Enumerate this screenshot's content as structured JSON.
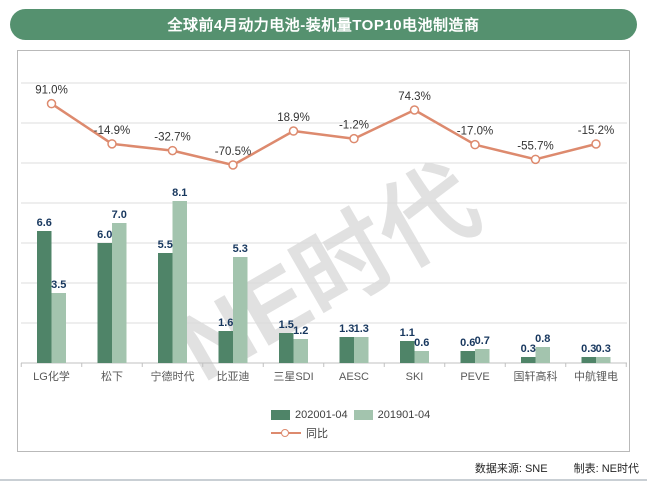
{
  "title": "全球前4月动力电池-装机量TOP10电池制造商",
  "watermark": "NE时代",
  "legend": {
    "series1_label": "202001-04",
    "series2_label": "201901-04",
    "line_label": "同比"
  },
  "footer": {
    "source_label": "数据来源: SNE",
    "maker_label": "制表: NE时代"
  },
  "colors": {
    "title_bg": "#55916f",
    "bar_2020": "#4f8468",
    "bar_2019": "#a3c4ae",
    "trend_line": "#dd8a6e",
    "bar_value_label": "#17375e",
    "trend_value_label": "#333333",
    "category_label": "#595959",
    "gridline": "#dcdcdc",
    "axis_line": "#c0c0c0"
  },
  "chart_data": {
    "type": "bar",
    "subtype": "grouped bars with secondary-axis line (combo)",
    "categories": [
      "LG化学",
      "松下",
      "宁德时代",
      "比亚迪",
      "三星SDI",
      "AESC",
      "SKI",
      "PEVE",
      "国轩高科",
      "中航锂电"
    ],
    "series": [
      {
        "name": "202001-04",
        "values": [
          6.6,
          6.0,
          5.5,
          1.6,
          1.5,
          1.3,
          1.1,
          0.6,
          0.3,
          0.3
        ]
      },
      {
        "name": "201901-04",
        "values": [
          3.5,
          7.0,
          8.1,
          5.3,
          1.2,
          1.3,
          0.6,
          0.7,
          0.8,
          0.3
        ]
      }
    ],
    "line_series": {
      "name": "同比",
      "unit": "%",
      "values": [
        91.0,
        -14.9,
        -32.7,
        -70.5,
        18.9,
        -1.2,
        74.3,
        -17.0,
        -55.7,
        -15.2
      ]
    },
    "title": "全球前4月动力电池-装机量TOP10电池制造商",
    "xlabel": "",
    "ylabel": "",
    "bar_axis_range": [
      0,
      14
    ],
    "bar_axis_major_unit": 2,
    "grid": "horizontal",
    "legend_position": "bottom-center",
    "value_labels_shown": true
  }
}
